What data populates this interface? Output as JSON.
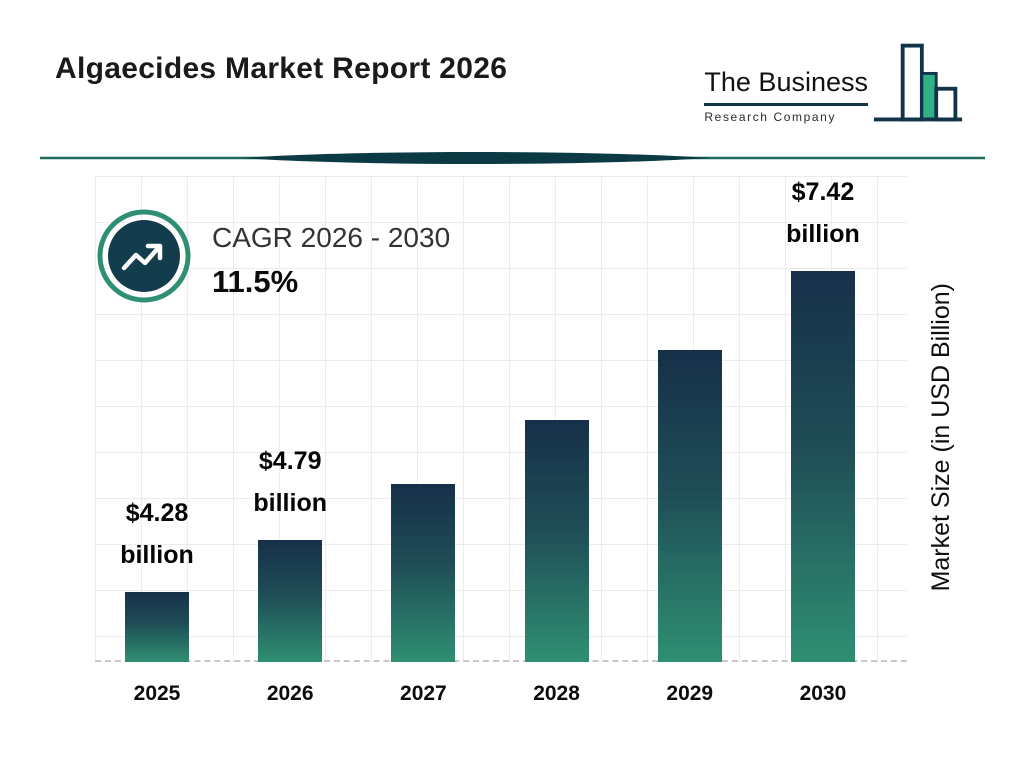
{
  "page": {
    "title": "Algaecides Market Report 2026"
  },
  "logo": {
    "name_line1": "The Business",
    "name_line2": "Research Company"
  },
  "cagr": {
    "label": "CAGR 2026 - 2030",
    "value": "11.5%"
  },
  "chart_data": {
    "type": "bar",
    "title": "Algaecides Market Report 2026",
    "xlabel": "",
    "ylabel": "Market Size (in USD Billion)",
    "categories": [
      "2025",
      "2026",
      "2027",
      "2028",
      "2029",
      "2030"
    ],
    "values": [
      4.28,
      4.79,
      5.34,
      5.96,
      6.65,
      7.42
    ],
    "values_estimated": [
      false,
      false,
      true,
      true,
      true,
      false
    ],
    "value_unit": "USD Billion",
    "bar_labels": [
      {
        "line1": "$4.28",
        "line2": "billion"
      },
      {
        "line1": "$4.79",
        "line2": "billion"
      },
      null,
      null,
      null,
      {
        "line1": "$7.42",
        "line2": "billion"
      }
    ],
    "ylim": [
      3.6,
      7.42
    ],
    "grid": true,
    "legend": "none",
    "colors": {
      "bar_gradient_top": "#16304a",
      "bar_gradient_bottom": "#2f8f72",
      "accent_teal": "#2f8f74",
      "icon_navy": "#133c4d",
      "logo_navy": "#12344a",
      "logo_green": "#2fb283",
      "divider_teal": "#1f6a58",
      "divider_lens": "#0c3a44",
      "gridline": "#ececec"
    }
  }
}
